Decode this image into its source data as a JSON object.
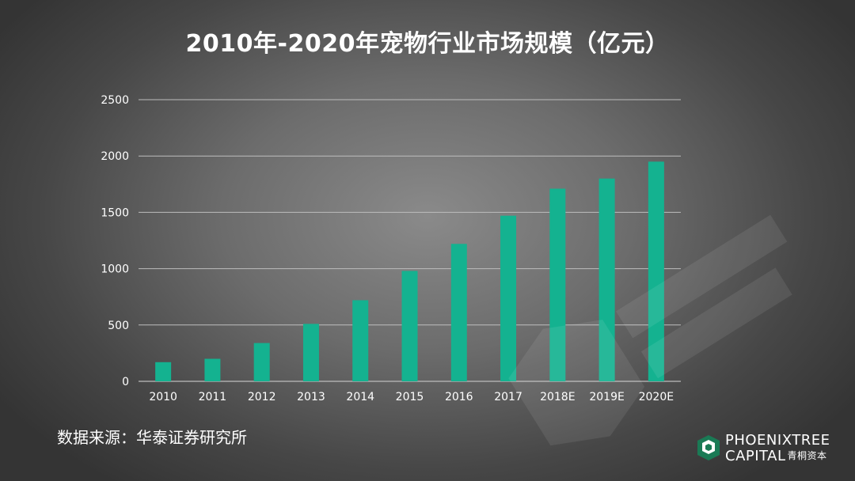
{
  "title": "2010年-2020年宠物行业市场规模（亿元）",
  "source": "数据来源：华泰证券研究所",
  "brand": {
    "line1": "PHOENIXTREE",
    "line2": "CAPITAL",
    "cn": "青桐资本",
    "accent": "#1a7a55"
  },
  "colors": {
    "bar": "#14b290",
    "grid": "#bdbdbd",
    "text": "#ffffff"
  },
  "chart_data": {
    "type": "bar",
    "title": "2010年-2020年宠物行业市场规模（亿元）",
    "categories": [
      "2010",
      "2011",
      "2012",
      "2013",
      "2014",
      "2015",
      "2016",
      "2017",
      "2018E",
      "2019E",
      "2020E"
    ],
    "values": [
      170,
      200,
      340,
      510,
      720,
      980,
      1220,
      1470,
      1710,
      1800,
      1950
    ],
    "ylim": [
      0,
      2500
    ],
    "yticks": [
      0,
      500,
      1000,
      1500,
      2000,
      2500
    ],
    "grid": true,
    "legend": "none"
  }
}
